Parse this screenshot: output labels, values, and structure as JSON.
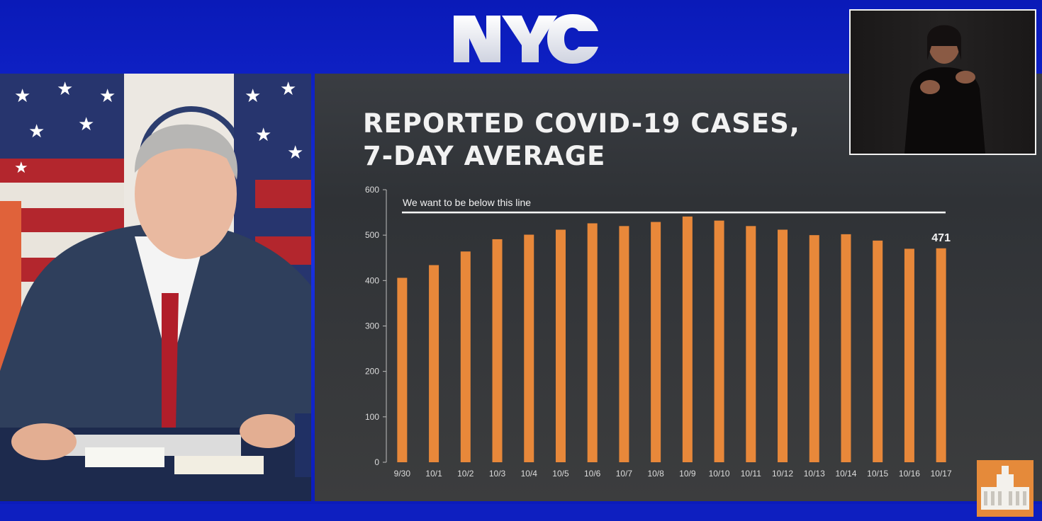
{
  "broadcast": {
    "logo_text": "NYC",
    "colors": {
      "frame_blue": "#1424c8",
      "bar_orange": "#e8883a",
      "line_white": "#ffffff"
    }
  },
  "slide": {
    "title": "REPORTED COVID-19 CASES,\n7-DAY AVERAGE"
  },
  "chart_data": {
    "type": "bar",
    "title": "REPORTED COVID-19 CASES, 7-DAY AVERAGE",
    "xlabel": "",
    "ylabel": "",
    "categories": [
      "9/30",
      "10/1",
      "10/2",
      "10/3",
      "10/4",
      "10/5",
      "10/6",
      "10/7",
      "10/8",
      "10/9",
      "10/10",
      "10/11",
      "10/12",
      "10/13",
      "10/14",
      "10/15",
      "10/16",
      "10/17"
    ],
    "values": [
      406,
      434,
      464,
      491,
      501,
      512,
      526,
      520,
      529,
      541,
      532,
      520,
      512,
      500,
      502,
      488,
      470,
      471
    ],
    "ylim": [
      0,
      600
    ],
    "yticks": [
      0,
      100,
      200,
      300,
      400,
      500,
      600
    ],
    "threshold": {
      "value": 550,
      "label": "We want to be below this line"
    },
    "data_labels": [
      {
        "category": "10/17",
        "text": "471"
      }
    ],
    "grid": false,
    "legend": "none"
  }
}
